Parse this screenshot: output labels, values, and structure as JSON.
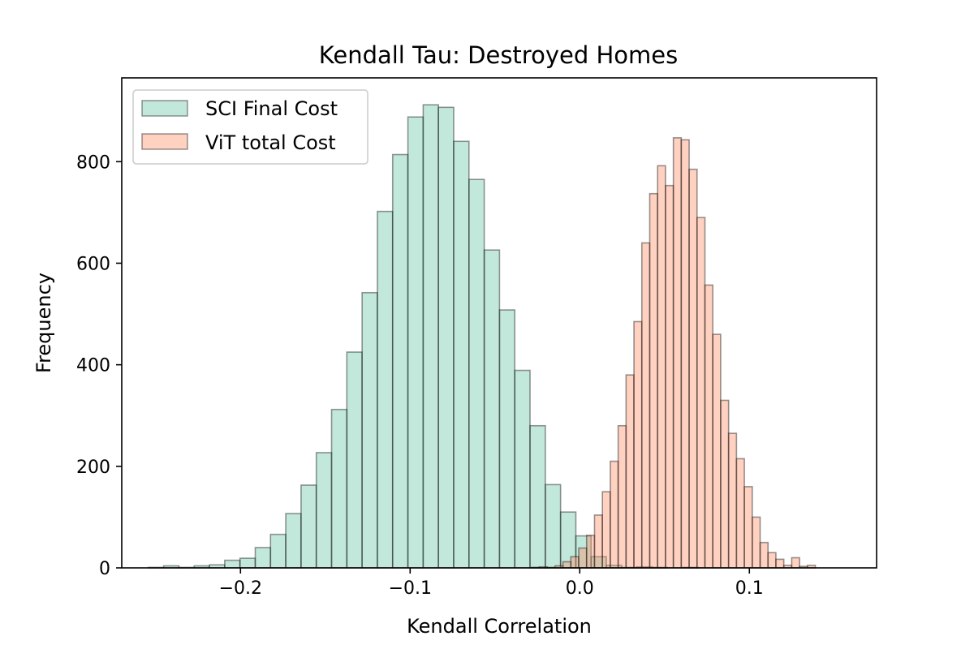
{
  "chart_data": {
    "type": "bar",
    "title": "Kendall Tau: Destroyed Homes",
    "xlabel": "Kendall Correlation",
    "ylabel": "Frequency",
    "xlim": [
      -0.27,
      0.175
    ],
    "ylim": [
      0,
      965
    ],
    "xticks": [
      {
        "value": -0.2,
        "label": "−0.2"
      },
      {
        "value": -0.1,
        "label": "−0.1"
      },
      {
        "value": 0.0,
        "label": "0.0"
      },
      {
        "value": 0.1,
        "label": "0.1"
      }
    ],
    "yticks": [
      {
        "value": 0,
        "label": "0"
      },
      {
        "value": 200,
        "label": "200"
      },
      {
        "value": 400,
        "label": "400"
      },
      {
        "value": 600,
        "label": "600"
      },
      {
        "value": 800,
        "label": "800"
      }
    ],
    "grid": false,
    "legend_position": "upper-left",
    "series": [
      {
        "name": "SCI Final Cost",
        "color": "#66c2a5",
        "alpha": 0.4,
        "bin_start": -0.2543,
        "bin_width": 0.009,
        "counts": [
          1,
          4,
          1,
          4,
          6,
          15,
          19,
          40,
          66,
          107,
          163,
          227,
          312,
          425,
          542,
          702,
          814,
          888,
          912,
          907,
          840,
          765,
          626,
          508,
          389,
          280,
          164,
          110,
          63,
          22,
          5,
          1,
          2,
          1,
          0,
          1
        ]
      },
      {
        "name": "ViT total Cost",
        "color": "#fc8d62",
        "alpha": 0.4,
        "bin_start": -0.0285,
        "bin_width": 0.00465,
        "counts": [
          1,
          2,
          1,
          4,
          12,
          22,
          39,
          64,
          104,
          150,
          210,
          280,
          380,
          485,
          640,
          737,
          792,
          753,
          847,
          843,
          785,
          690,
          557,
          460,
          330,
          265,
          215,
          160,
          100,
          50,
          30,
          17,
          5,
          20,
          3,
          5
        ]
      }
    ]
  }
}
